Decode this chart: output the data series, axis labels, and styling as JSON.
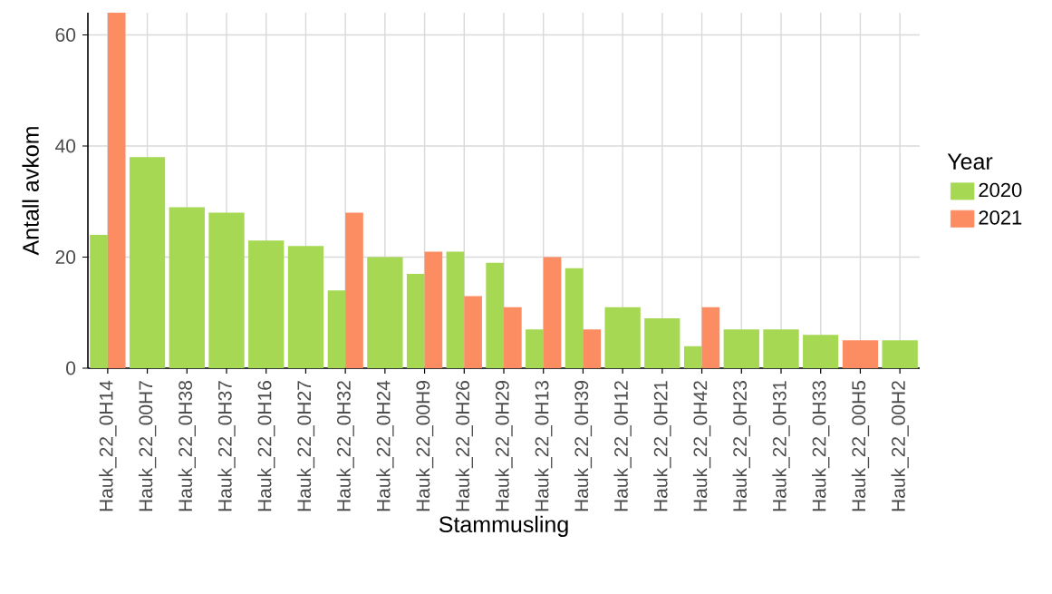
{
  "chart_data": {
    "type": "bar",
    "xlabel": "Stammusling",
    "ylabel": "Antall avkom",
    "legend_title": "Year",
    "categories": [
      "Hauk_22_0H14",
      "Hauk_22_00H7",
      "Hauk_22_0H38",
      "Hauk_22_0H37",
      "Hauk_22_0H16",
      "Hauk_22_0H27",
      "Hauk_22_0H32",
      "Hauk_22_0H24",
      "Hauk_22_00H9",
      "Hauk_22_0H26",
      "Hauk_22_0H29",
      "Hauk_22_0H13",
      "Hauk_22_0H39",
      "Hauk_22_0H12",
      "Hauk_22_0H21",
      "Hauk_22_0H42",
      "Hauk_22_0H23",
      "Hauk_22_0H31",
      "Hauk_22_0H33",
      "Hauk_22_00H5",
      "Hauk_22_00H2"
    ],
    "series": [
      {
        "name": "2020",
        "color": "#a6d854",
        "values": [
          24,
          38,
          29,
          28,
          23,
          22,
          14,
          20,
          17,
          21,
          19,
          7,
          18,
          11,
          9,
          4,
          7,
          7,
          6,
          null,
          5
        ]
      },
      {
        "name": "2021",
        "color": "#fc8d62",
        "values": [
          64,
          null,
          null,
          null,
          null,
          null,
          28,
          null,
          21,
          13,
          11,
          20,
          7,
          null,
          null,
          11,
          null,
          null,
          null,
          5,
          null
        ]
      }
    ],
    "ylim": [
      0,
      64
    ],
    "yticks": [
      0,
      20,
      40,
      60
    ],
    "grid": true,
    "legend": "right"
  }
}
